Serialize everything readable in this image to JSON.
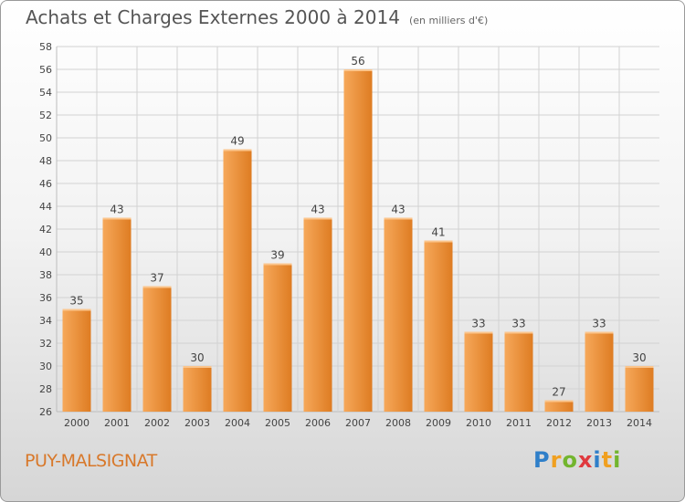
{
  "header": {
    "title": "Achats et Charges Externes 2000 à 2014",
    "subtitle": "(en milliers d'€)"
  },
  "footer": {
    "commune": "PUY-MALSIGNAT",
    "brand": "Proxiti",
    "brand_letters": [
      {
        "char": "P",
        "color": "#2f7fc9"
      },
      {
        "char": "r",
        "color": "#f0a020"
      },
      {
        "char": "o",
        "color": "#72b52e"
      },
      {
        "char": "x",
        "color": "#e0393e"
      },
      {
        "char": "i",
        "color": "#2f7fc9"
      },
      {
        "char": "t",
        "color": "#f0a020"
      },
      {
        "char": "i",
        "color": "#72b52e"
      }
    ]
  },
  "colors": {
    "bar_light": "#f6a85a",
    "bar_dark": "#de7c22",
    "grid": "#d2d2d2",
    "axis_text": "#444444",
    "commune": "#d8782a"
  },
  "chart_data": {
    "type": "bar",
    "title": "Achats et Charges Externes 2000 à 2014",
    "subtitle": "(en milliers d'€)",
    "categories": [
      "2000",
      "2001",
      "2002",
      "2003",
      "2004",
      "2005",
      "2006",
      "2007",
      "2008",
      "2009",
      "2010",
      "2011",
      "2012",
      "2013",
      "2014"
    ],
    "values": [
      35,
      43,
      37,
      30,
      49,
      39,
      43,
      56,
      43,
      41,
      33,
      33,
      27,
      33,
      30
    ],
    "ylim": [
      26,
      58
    ],
    "ytick_step": 2,
    "grid": true,
    "legend": "none"
  }
}
